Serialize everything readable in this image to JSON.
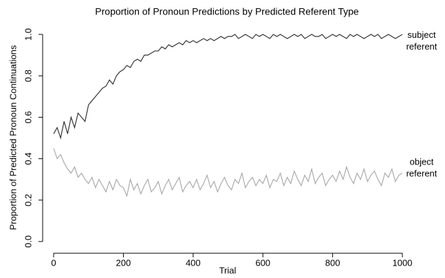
{
  "chart_data": {
    "type": "line",
    "title": "Proportion of Pronoun Predictions by Predicted Referent Type",
    "xlabel": "Trial",
    "ylabel": "Proportion of Predicted Pronoun Continuations",
    "x": [
      0,
      10,
      20,
      30,
      40,
      50,
      60,
      70,
      80,
      90,
      100,
      110,
      120,
      130,
      140,
      150,
      160,
      170,
      180,
      190,
      200,
      210,
      220,
      230,
      240,
      250,
      260,
      270,
      280,
      290,
      300,
      310,
      320,
      330,
      340,
      350,
      360,
      370,
      380,
      390,
      400,
      410,
      420,
      430,
      440,
      450,
      460,
      470,
      480,
      490,
      500,
      510,
      520,
      530,
      540,
      550,
      560,
      570,
      580,
      590,
      600,
      610,
      620,
      630,
      640,
      650,
      660,
      670,
      680,
      690,
      700,
      710,
      720,
      730,
      740,
      750,
      760,
      770,
      780,
      790,
      800,
      810,
      820,
      830,
      840,
      850,
      860,
      870,
      880,
      890,
      900,
      910,
      920,
      930,
      940,
      950,
      960,
      970,
      980,
      990,
      1000
    ],
    "series": [
      {
        "name": "subject referent",
        "color": "#333333",
        "values": [
          0.52,
          0.55,
          0.5,
          0.58,
          0.52,
          0.6,
          0.55,
          0.62,
          0.6,
          0.58,
          0.66,
          0.68,
          0.7,
          0.72,
          0.74,
          0.75,
          0.78,
          0.76,
          0.8,
          0.82,
          0.83,
          0.85,
          0.84,
          0.87,
          0.88,
          0.87,
          0.9,
          0.9,
          0.91,
          0.92,
          0.92,
          0.94,
          0.93,
          0.95,
          0.94,
          0.95,
          0.96,
          0.95,
          0.97,
          0.96,
          0.97,
          0.96,
          0.97,
          0.98,
          0.97,
          0.98,
          0.97,
          0.98,
          0.99,
          0.98,
          0.99,
          0.99,
          1.0,
          0.98,
          0.99,
          1.0,
          0.99,
          0.98,
          1.0,
          0.99,
          1.0,
          0.99,
          0.98,
          1.0,
          0.99,
          1.0,
          0.99,
          0.98,
          0.99,
          1.0,
          0.99,
          1.0,
          0.98,
          0.99,
          1.0,
          0.99,
          0.99,
          1.0,
          0.98,
          0.99,
          1.0,
          0.99,
          1.0,
          0.99,
          0.98,
          1.0,
          0.99,
          1.0,
          0.99,
          0.98,
          0.99,
          1.0,
          0.99,
          1.0,
          0.98,
          0.99,
          1.0,
          0.99,
          0.98,
          0.99,
          1.0
        ]
      },
      {
        "name": "object referent",
        "color": "#aaaaaa",
        "values": [
          0.45,
          0.4,
          0.42,
          0.38,
          0.35,
          0.33,
          0.36,
          0.31,
          0.33,
          0.3,
          0.28,
          0.31,
          0.26,
          0.3,
          0.27,
          0.24,
          0.29,
          0.25,
          0.3,
          0.27,
          0.26,
          0.22,
          0.3,
          0.25,
          0.28,
          0.23,
          0.27,
          0.3,
          0.24,
          0.26,
          0.29,
          0.23,
          0.27,
          0.3,
          0.25,
          0.28,
          0.31,
          0.24,
          0.27,
          0.29,
          0.26,
          0.3,
          0.25,
          0.28,
          0.32,
          0.26,
          0.29,
          0.24,
          0.28,
          0.31,
          0.27,
          0.25,
          0.3,
          0.28,
          0.33,
          0.26,
          0.29,
          0.31,
          0.27,
          0.3,
          0.28,
          0.32,
          0.26,
          0.3,
          0.29,
          0.33,
          0.27,
          0.31,
          0.28,
          0.34,
          0.3,
          0.27,
          0.32,
          0.29,
          0.35,
          0.28,
          0.31,
          0.33,
          0.27,
          0.3,
          0.32,
          0.29,
          0.34,
          0.3,
          0.36,
          0.31,
          0.28,
          0.33,
          0.3,
          0.35,
          0.29,
          0.32,
          0.34,
          0.3,
          0.27,
          0.33,
          0.31,
          0.35,
          0.29,
          0.32,
          0.33
        ]
      }
    ],
    "xlim": [
      0,
      1000
    ],
    "xticks": [
      0,
      200,
      400,
      600,
      800,
      1000
    ],
    "ylim": [
      0,
      1
    ],
    "yticks": [
      {
        "value": 0,
        "label": "0.0"
      },
      {
        "value": 0.2,
        "label": "0.2"
      },
      {
        "value": 0.4,
        "label": "0.4"
      },
      {
        "value": 0.6,
        "label": "0.6"
      },
      {
        "value": 0.8,
        "label": "0.8"
      },
      {
        "value": 1,
        "label": "1.0"
      }
    ],
    "grid": false
  }
}
